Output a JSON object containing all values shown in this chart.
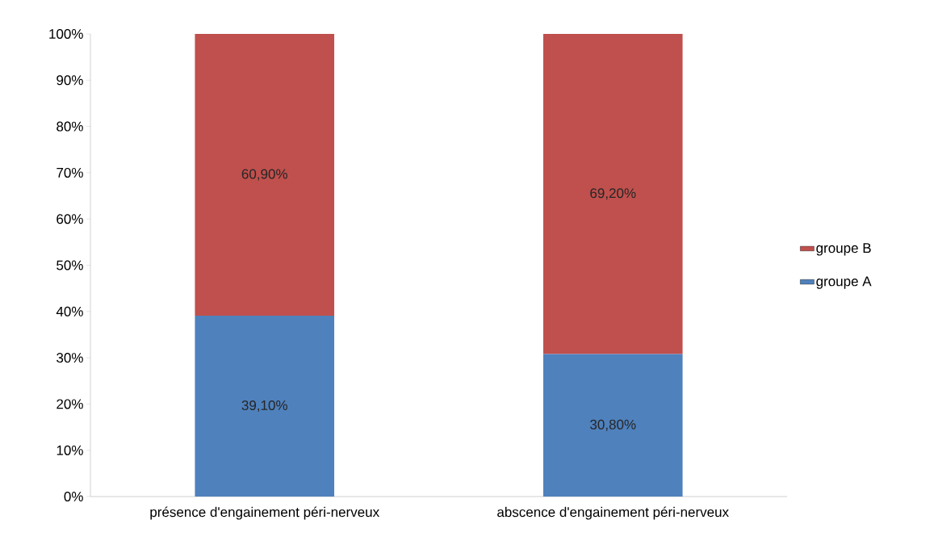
{
  "chart_data": {
    "type": "bar",
    "stacked": true,
    "categories": [
      "présence d'engainement péri-nerveux",
      "abscence d'engainement péri-nerveux"
    ],
    "series": [
      {
        "name": "groupe A",
        "color": "#4f81bd",
        "values": [
          39.1,
          30.8
        ],
        "value_labels": [
          "39,10%",
          "30,80%"
        ]
      },
      {
        "name": "groupe B",
        "color": "#c0504d",
        "values": [
          60.9,
          69.2
        ],
        "value_labels": [
          "60,90%",
          "69,20%"
        ]
      }
    ],
    "ylim": [
      0,
      100
    ],
    "yticks": [
      {
        "value": 0,
        "label": "0%"
      },
      {
        "value": 10,
        "label": "10%"
      },
      {
        "value": 20,
        "label": "20%"
      },
      {
        "value": 30,
        "label": "30%"
      },
      {
        "value": 40,
        "label": "40%"
      },
      {
        "value": 50,
        "label": "50%"
      },
      {
        "value": 60,
        "label": "60%"
      },
      {
        "value": 70,
        "label": "70%"
      },
      {
        "value": 80,
        "label": "80%"
      },
      {
        "value": 90,
        "label": "90%"
      },
      {
        "value": 100,
        "label": "100%"
      }
    ],
    "legend": "right"
  }
}
